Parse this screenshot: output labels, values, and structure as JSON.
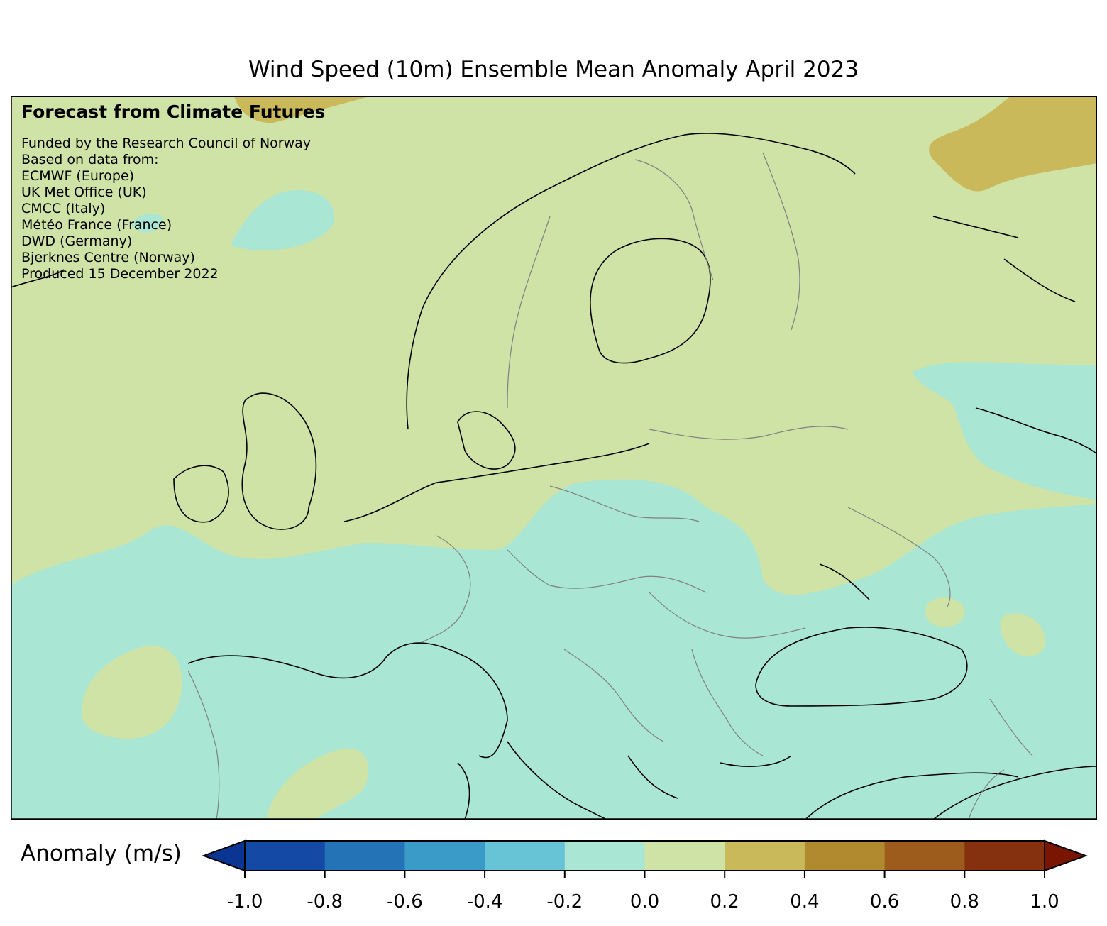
{
  "title": "Wind Speed (10m) Ensemble Mean Anomaly April 2023",
  "credits": {
    "heading": "Forecast from Climate Futures",
    "lines": [
      "Funded by the Research Council of Norway",
      "Based on data from:",
      "ECMWF (Europe)",
      "UK Met Office (UK)",
      "CMCC (Italy)",
      "Météo France (France)",
      "DWD (Germany)",
      "Bjerknes Centre (Norway)",
      "Produced 15 December 2022"
    ]
  },
  "colorbar": {
    "label": "Anomaly (m/s)",
    "ticks": [
      "-1.0",
      "-0.8",
      "-0.6",
      "-0.4",
      "-0.2",
      "0.0",
      "0.2",
      "0.4",
      "0.6",
      "0.8",
      "1.0"
    ],
    "colors": [
      "#0a3593",
      "#1449a6",
      "#2473b6",
      "#3a9bc9",
      "#66c4d6",
      "#a9e6d4",
      "#cfe3a6",
      "#c9b95b",
      "#b18a2f",
      "#9d5c1b",
      "#86310d",
      "#7a1502"
    ]
  },
  "legend_colors": {
    "ocean_land_anomaly_low": "#a9e6d4",
    "anomaly_slightly_positive": "#cfe3a6",
    "anomaly_positive": "#c9b95b",
    "border": "#808080",
    "coastline": "#000000"
  }
}
